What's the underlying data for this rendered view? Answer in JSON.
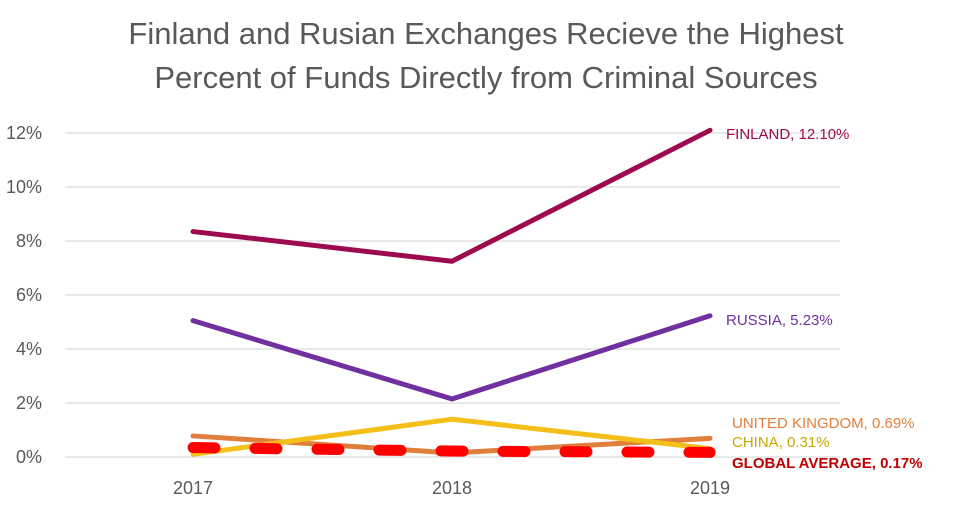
{
  "chart_data": {
    "type": "line",
    "title_line1": "Finland and Rusian Exchanges Recieve the Highest",
    "title_line2": "Percent of Funds Directly from Criminal Sources",
    "categories": [
      "2017",
      "2018",
      "2019"
    ],
    "ylim": [
      0,
      12
    ],
    "yticks": [
      0,
      2,
      4,
      6,
      8,
      10,
      12
    ],
    "ytick_labels": [
      "0%",
      "2%",
      "4%",
      "6%",
      "8%",
      "10%",
      "12%"
    ],
    "grid": true,
    "xlabel": "",
    "ylabel": "",
    "series": [
      {
        "name": "FINLAND",
        "label": "FINLAND, 12.10%",
        "values": [
          8.35,
          7.25,
          12.1
        ],
        "color": "#9e0a4e",
        "dashed": false,
        "bold_label": false
      },
      {
        "name": "RUSSIA",
        "label": "RUSSIA, 5.23%",
        "values": [
          5.05,
          2.15,
          5.23
        ],
        "color": "#7030a0",
        "dashed": false,
        "bold_label": false
      },
      {
        "name": "UNITED KINGDOM",
        "label": "UNITED KINGDOM, 0.69%",
        "values": [
          0.78,
          0.15,
          0.69
        ],
        "color": "#e07f3b",
        "dashed": false,
        "bold_label": false
      },
      {
        "name": "CHINA",
        "label": "CHINA, 0.31%",
        "values": [
          0.1,
          1.4,
          0.31
        ],
        "color": "#f5bf1a",
        "dashed": false,
        "bold_label": false
      },
      {
        "name": "GLOBAL AVERAGE",
        "label": "GLOBAL AVERAGE, 0.17%",
        "values": [
          0.35,
          0.22,
          0.17
        ],
        "color": "#ff0000",
        "dashed": true,
        "bold_label": true
      }
    ],
    "label_colors": {
      "FINLAND": "#9e0a4e",
      "RUSSIA": "#7030a0",
      "UNITED KINGDOM": "#e07f3b",
      "CHINA": "#c9a800",
      "GLOBAL AVERAGE": "#c00000"
    }
  }
}
